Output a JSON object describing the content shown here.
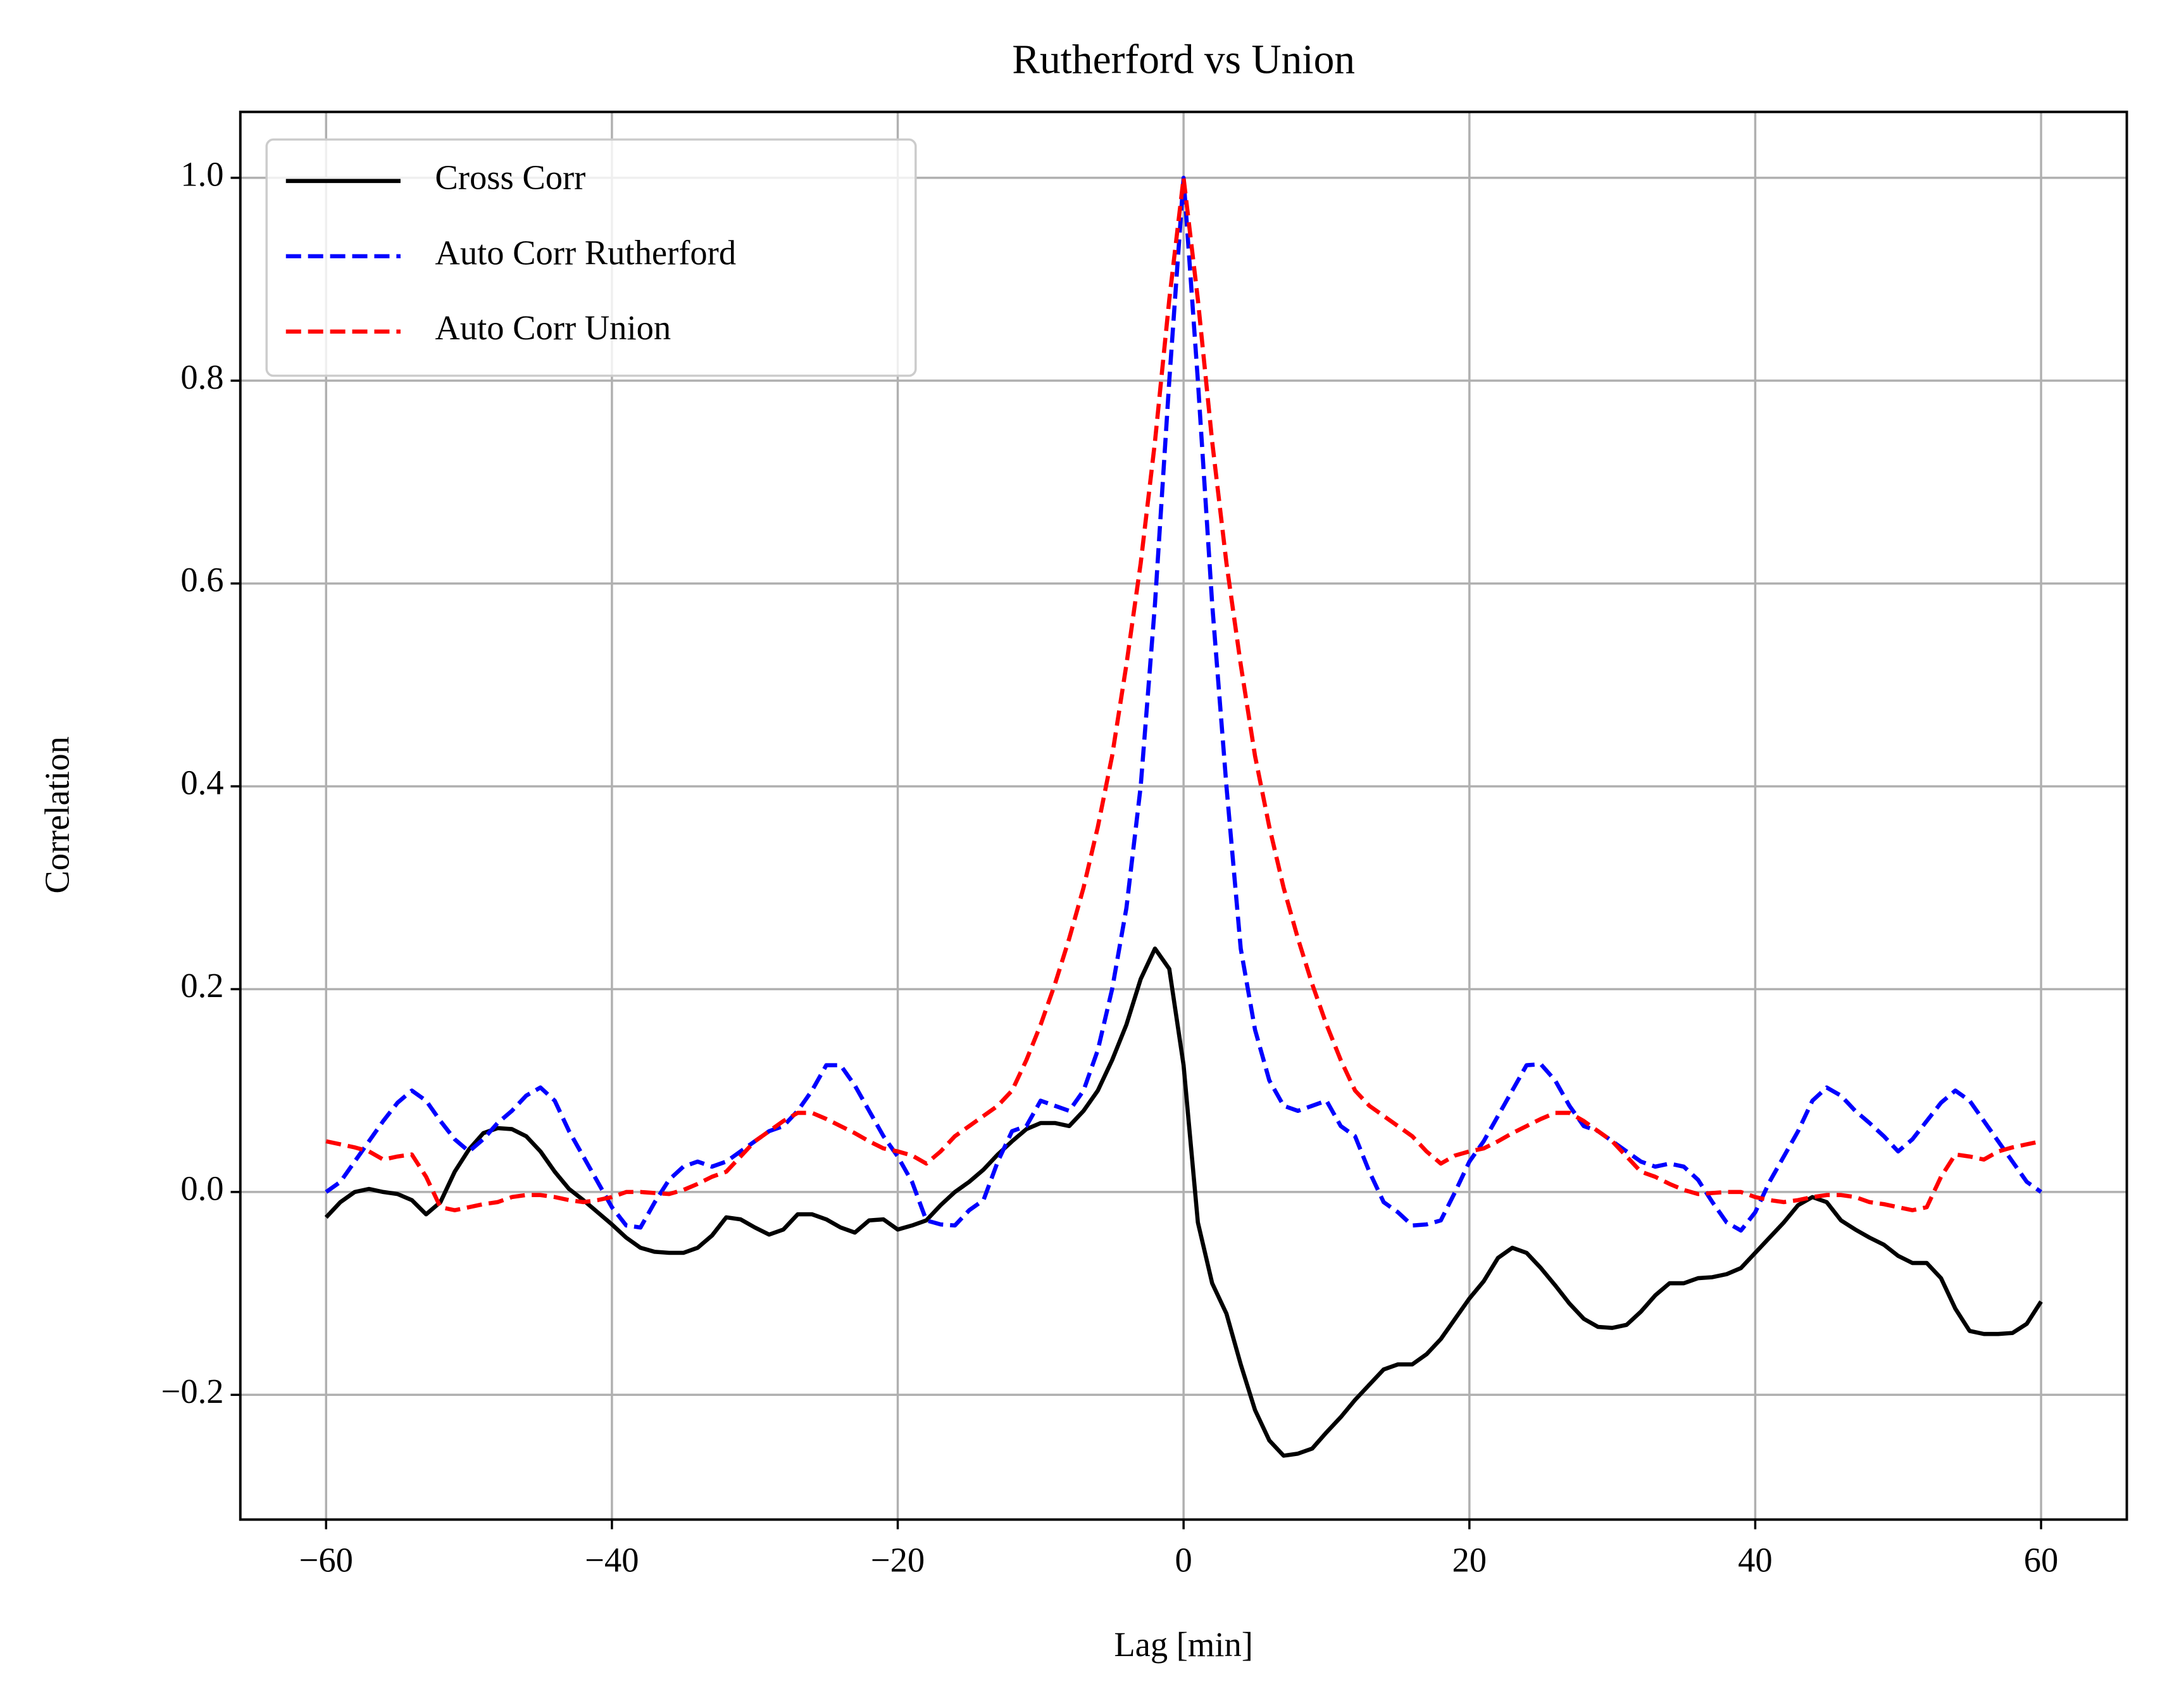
{
  "chart_data": {
    "type": "line",
    "title": "Rutherford vs Union",
    "xlabel": "Lag [min]",
    "ylabel": "Correlation",
    "x": [
      -60,
      -59,
      -58,
      -57,
      -56,
      -55,
      -54,
      -53,
      -52,
      -51,
      -50,
      -49,
      -48,
      -47,
      -46,
      -45,
      -44,
      -43,
      -42,
      -41,
      -40,
      -39,
      -38,
      -37,
      -36,
      -35,
      -34,
      -33,
      -32,
      -31,
      -30,
      -29,
      -28,
      -27,
      -26,
      -25,
      -24,
      -23,
      -22,
      -21,
      -20,
      -19,
      -18,
      -17,
      -16,
      -15,
      -14,
      -13,
      -12,
      -11,
      -10,
      -9,
      -8,
      -7,
      -6,
      -5,
      -4,
      -3,
      -2,
      -1,
      0,
      1,
      2,
      3,
      4,
      5,
      6,
      7,
      8,
      9,
      10,
      11,
      12,
      13,
      14,
      15,
      16,
      17,
      18,
      19,
      20,
      21,
      22,
      23,
      24,
      25,
      26,
      27,
      28,
      29,
      30,
      31,
      32,
      33,
      34,
      35,
      36,
      37,
      38,
      39,
      40,
      41,
      42,
      43,
      44,
      45,
      46,
      47,
      48,
      49,
      50,
      51,
      52,
      53,
      54,
      55,
      56,
      57,
      58,
      59,
      60
    ],
    "series": [
      {
        "name": "Cross Corr",
        "color": "#000000",
        "dash": false,
        "values": [
          -0.025,
          -0.01,
          0.0,
          0.003,
          0.0,
          -0.002,
          -0.008,
          -0.022,
          -0.01,
          0.02,
          0.042,
          0.058,
          0.063,
          0.062,
          0.055,
          0.04,
          0.02,
          0.003,
          -0.008,
          -0.02,
          -0.032,
          -0.045,
          -0.055,
          -0.059,
          -0.06,
          -0.06,
          -0.055,
          -0.043,
          -0.025,
          -0.027,
          -0.035,
          -0.042,
          -0.037,
          -0.022,
          -0.022,
          -0.027,
          -0.035,
          -0.04,
          -0.028,
          -0.027,
          -0.037,
          -0.033,
          -0.028,
          -0.013,
          0.0,
          0.01,
          0.022,
          0.037,
          0.05,
          0.062,
          0.068,
          0.068,
          0.065,
          0.08,
          0.1,
          0.13,
          0.165,
          0.21,
          0.24,
          0.22,
          0.125,
          -0.03,
          -0.09,
          -0.12,
          -0.17,
          -0.215,
          -0.245,
          -0.26,
          -0.258,
          -0.253,
          -0.237,
          -0.222,
          -0.205,
          -0.19,
          -0.175,
          -0.17,
          -0.17,
          -0.16,
          -0.145,
          -0.125,
          -0.105,
          -0.088,
          -0.065,
          -0.055,
          -0.06,
          -0.075,
          -0.092,
          -0.11,
          -0.125,
          -0.133,
          -0.134,
          -0.131,
          -0.118,
          -0.102,
          -0.09,
          -0.09,
          -0.085,
          -0.084,
          -0.081,
          -0.075,
          -0.06,
          -0.045,
          -0.03,
          -0.013,
          -0.005,
          -0.01,
          -0.028,
          -0.037,
          -0.045,
          -0.052,
          -0.063,
          -0.07,
          -0.07,
          -0.085,
          -0.115,
          -0.137,
          -0.14,
          -0.14,
          -0.139,
          -0.13,
          -0.108
        ]
      },
      {
        "name": "Auto Corr Rutherford",
        "color": "#0000ff",
        "dash": true,
        "values": [
          0.0,
          0.01,
          0.03,
          0.05,
          0.07,
          0.088,
          0.1,
          0.09,
          0.07,
          0.052,
          0.04,
          0.052,
          0.068,
          0.08,
          0.095,
          0.103,
          0.09,
          0.06,
          0.035,
          0.01,
          -0.015,
          -0.033,
          -0.035,
          -0.01,
          0.012,
          0.025,
          0.03,
          0.025,
          0.03,
          0.04,
          0.05,
          0.06,
          0.065,
          0.08,
          0.1,
          0.125,
          0.125,
          0.105,
          0.08,
          0.055,
          0.035,
          0.01,
          -0.028,
          -0.032,
          -0.033,
          -0.018,
          -0.008,
          0.03,
          0.06,
          0.065,
          0.09,
          0.085,
          0.08,
          0.1,
          0.14,
          0.2,
          0.28,
          0.4,
          0.58,
          0.8,
          1.0,
          0.8,
          0.58,
          0.4,
          0.24,
          0.16,
          0.11,
          0.085,
          0.08,
          0.085,
          0.09,
          0.065,
          0.055,
          0.02,
          -0.01,
          -0.02,
          -0.033,
          -0.032,
          -0.028,
          0.0,
          0.03,
          0.05,
          0.075,
          0.1,
          0.125,
          0.126,
          0.11,
          0.085,
          0.065,
          0.06,
          0.05,
          0.04,
          0.03,
          0.025,
          0.028,
          0.025,
          0.012,
          -0.01,
          -0.03,
          -0.038,
          -0.02,
          0.01,
          0.035,
          0.06,
          0.09,
          0.103,
          0.095,
          0.08,
          0.068,
          0.055,
          0.04,
          0.052,
          0.07,
          0.088,
          0.1,
          0.09,
          0.07,
          0.05,
          0.03,
          0.01,
          0.0
        ]
      },
      {
        "name": "Auto Corr Union",
        "color": "#ff0000",
        "dash": true,
        "values": [
          0.05,
          0.047,
          0.044,
          0.04,
          0.032,
          0.035,
          0.037,
          0.015,
          -0.015,
          -0.018,
          -0.015,
          -0.012,
          -0.01,
          -0.005,
          -0.003,
          -0.003,
          -0.005,
          -0.008,
          -0.01,
          -0.008,
          -0.005,
          0.0,
          0.0,
          -0.001,
          -0.002,
          0.002,
          0.008,
          0.015,
          0.02,
          0.035,
          0.05,
          0.06,
          0.07,
          0.078,
          0.078,
          0.072,
          0.065,
          0.058,
          0.05,
          0.043,
          0.04,
          0.036,
          0.028,
          0.04,
          0.055,
          0.065,
          0.075,
          0.085,
          0.1,
          0.13,
          0.165,
          0.205,
          0.25,
          0.3,
          0.36,
          0.43,
          0.52,
          0.62,
          0.74,
          0.88,
          1.0,
          0.88,
          0.74,
          0.62,
          0.52,
          0.43,
          0.36,
          0.3,
          0.25,
          0.205,
          0.165,
          0.13,
          0.1,
          0.085,
          0.075,
          0.065,
          0.055,
          0.04,
          0.028,
          0.036,
          0.04,
          0.043,
          0.05,
          0.058,
          0.065,
          0.072,
          0.078,
          0.078,
          0.07,
          0.06,
          0.05,
          0.035,
          0.02,
          0.015,
          0.008,
          0.002,
          -0.002,
          -0.001,
          0.0,
          0.0,
          -0.005,
          -0.008,
          -0.01,
          -0.008,
          -0.005,
          -0.003,
          -0.003,
          -0.005,
          -0.01,
          -0.012,
          -0.015,
          -0.018,
          -0.015,
          0.015,
          0.037,
          0.035,
          0.032,
          0.04,
          0.044,
          0.047,
          0.05
        ]
      }
    ],
    "xlim": [
      -66,
      66
    ],
    "ylim": [
      -0.323,
      1.065
    ],
    "xticks": [
      {
        "value": -60,
        "label": "−60"
      },
      {
        "value": -40,
        "label": "−40"
      },
      {
        "value": -20,
        "label": "−20"
      },
      0,
      20,
      40,
      60
    ],
    "yticks": [
      {
        "value": -0.2,
        "label": "−0.2"
      },
      {
        "value": 0,
        "label": "0.0"
      },
      0.2,
      0.4,
      0.6,
      0.8,
      {
        "value": 1,
        "label": "1.0"
      }
    ],
    "grid": true,
    "legend": "upper left"
  }
}
